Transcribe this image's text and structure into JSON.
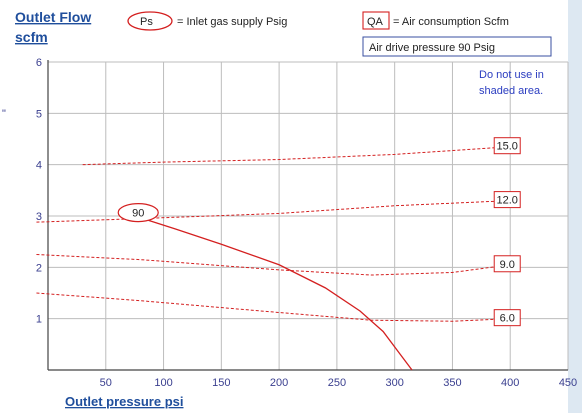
{
  "chart_data": {
    "type": "line",
    "title": "Outlet Flow",
    "ylabel": "scfm",
    "xlabel": "Outlet pressure   psi",
    "xlim": [
      0,
      450
    ],
    "ylim": [
      0,
      6
    ],
    "xticks": [
      50,
      100,
      150,
      200,
      250,
      300,
      350,
      400,
      450
    ],
    "yticks": [
      1,
      2,
      3,
      4,
      5,
      6
    ],
    "grid": true,
    "legend": {
      "ps_symbol": "Ps",
      "ps_text": "= Inlet gas supply  Psig",
      "qa_symbol": "QA",
      "qa_text": "= Air consumption  Scfm",
      "air_drive": "Air drive pressure  90 Psig"
    },
    "note": [
      "Do not use in",
      "shaded area."
    ],
    "side_mark": "\"",
    "series": [
      {
        "name": "90",
        "style": "solid",
        "x": [
          85,
          110,
          150,
          200,
          240,
          270,
          290,
          305,
          315
        ],
        "y": [
          2.93,
          2.75,
          2.45,
          2.05,
          1.6,
          1.15,
          0.75,
          0.3,
          0.0
        ]
      }
    ],
    "qa_curves": [
      {
        "label": "15.0",
        "x": [
          30,
          100,
          200,
          300,
          400
        ],
        "y": [
          4.0,
          4.05,
          4.1,
          4.2,
          4.35
        ]
      },
      {
        "label": "12.0",
        "x": [
          -10,
          80,
          200,
          300,
          400
        ],
        "y": [
          2.88,
          2.95,
          3.05,
          3.2,
          3.3
        ]
      },
      {
        "label": "9.0",
        "x": [
          -10,
          80,
          200,
          280,
          350,
          400
        ],
        "y": [
          2.25,
          2.15,
          1.95,
          1.85,
          1.9,
          2.05
        ]
      },
      {
        "label": "6.0",
        "x": [
          -10,
          80,
          200,
          280,
          350,
          400
        ],
        "y": [
          1.5,
          1.35,
          1.12,
          0.97,
          0.95,
          1.0
        ]
      }
    ],
    "colors": {
      "curve": "#d42020",
      "qa_dash": "#d42020",
      "grid": "#bdbdbd",
      "axis_text": "#3a3f8f",
      "title": "#1f4e9c",
      "note": "#2a3cc0",
      "shade": "#dde8f2"
    }
  }
}
